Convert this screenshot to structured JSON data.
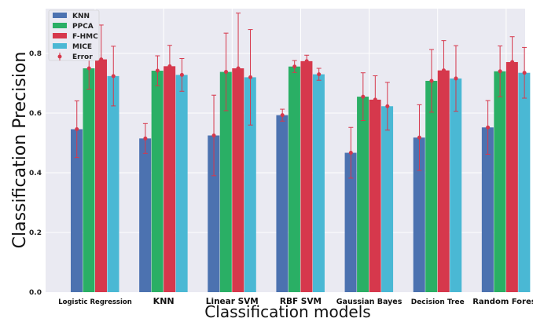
{
  "chart_data": {
    "type": "bar",
    "xlabel": "Classification models",
    "ylabel": "Classification Precision",
    "ylim": [
      0.0,
      0.95
    ],
    "yticks": [
      "0.0",
      "0.2",
      "0.4",
      "0.6",
      "0.8"
    ],
    "grid": true,
    "legend_position": "top-left",
    "legend_error_label": "Error",
    "categories": [
      "Logistic Regression",
      "KNN",
      "Linear SVM",
      "RBF SVM",
      "Gaussian Bayes",
      "Decision Tree",
      "Random Forest"
    ],
    "series": [
      {
        "name": "KNN",
        "color": "#4c72b0",
        "values": [
          0.546,
          0.515,
          0.525,
          0.593,
          0.467,
          0.518,
          0.552
        ],
        "errors": [
          0.095,
          0.05,
          0.135,
          0.02,
          0.085,
          0.11,
          0.09
        ]
      },
      {
        "name": "PPCA",
        "color": "#2aaf65",
        "values": [
          0.75,
          0.742,
          0.738,
          0.756,
          0.655,
          0.708,
          0.74
        ],
        "errors": [
          0.07,
          0.05,
          0.13,
          0.02,
          0.08,
          0.105,
          0.085
        ]
      },
      {
        "name": "F-HMC",
        "color": "#d6384c",
        "values": [
          0.78,
          0.757,
          0.75,
          0.774,
          0.645,
          0.743,
          0.771
        ],
        "errors": [
          0.115,
          0.07,
          0.185,
          0.02,
          0.08,
          0.1,
          0.085
        ]
      },
      {
        "name": "MICE",
        "color": "#4ab8d4",
        "values": [
          0.724,
          0.728,
          0.72,
          0.73,
          0.623,
          0.716,
          0.735
        ],
        "errors": [
          0.1,
          0.055,
          0.16,
          0.02,
          0.08,
          0.11,
          0.085
        ]
      }
    ],
    "error_color": "#d6384c"
  }
}
